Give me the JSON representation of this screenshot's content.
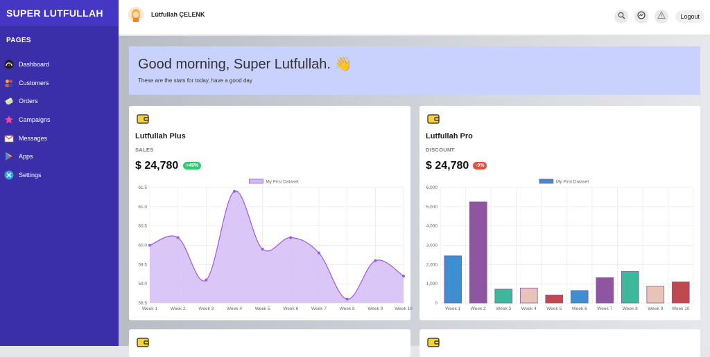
{
  "sidebar": {
    "brand": "SUPER LUTFULLAH",
    "section": "PAGES",
    "items": [
      {
        "label": "Dashboard",
        "icon": "dashboard-icon"
      },
      {
        "label": "Customers",
        "icon": "customers-icon"
      },
      {
        "label": "Orders",
        "icon": "orders-icon"
      },
      {
        "label": "Campaigns",
        "icon": "campaigns-icon"
      },
      {
        "label": "Messages",
        "icon": "messages-icon"
      },
      {
        "label": "Apps",
        "icon": "apps-icon"
      },
      {
        "label": "Settings",
        "icon": "settings-icon"
      }
    ]
  },
  "topbar": {
    "user_name": "Lütfullah ÇELENK",
    "logout_label": "Logout"
  },
  "greeting": {
    "title": "Good morning, Super Lutfullah. 👋",
    "subtitle": "These are the stats for today, have a good day"
  },
  "cards": [
    {
      "title": "Lutfullah Plus",
      "label": "SALES",
      "amount": "$ 24,780",
      "badge": "+49%",
      "trend": "up"
    },
    {
      "title": "Lutfullah Pro",
      "label": "DISCOUNT",
      "amount": "$ 24,780",
      "badge": "-9%",
      "trend": "down"
    }
  ],
  "colors": {
    "sidebar": "#3a2fa8",
    "brand_bar": "#4536c4",
    "greeting_bg": "#c8d2fd",
    "badge_up": "#2ecc71",
    "badge_down": "#e74c3c"
  },
  "chart_data": [
    {
      "type": "line",
      "legend": "My First Dataset",
      "legend_placement": "top-center",
      "x": [
        "Week 1",
        "Week 2",
        "Week 3",
        "Week 4",
        "Week 5",
        "Week 6",
        "Week 7",
        "Week 8",
        "Week 9",
        "Week 10"
      ],
      "values": [
        60.0,
        60.2,
        59.1,
        61.4,
        59.9,
        60.2,
        59.8,
        58.6,
        59.6,
        59.2
      ],
      "ylim": [
        58.5,
        61.5
      ],
      "yticks": [
        "61.5",
        "61.0",
        "60.5",
        "60.0",
        "59.5",
        "59.0",
        "58.5"
      ],
      "fill": true,
      "color": "#9b59e6",
      "grid": true
    },
    {
      "type": "bar",
      "legend": "My First Dataset",
      "legend_placement": "top-center",
      "x": [
        "Week 1",
        "Week 2",
        "Week 3",
        "Week 4",
        "Week 5",
        "Week 6",
        "Week 7",
        "Week 8",
        "Week 9",
        "Week 10"
      ],
      "values": [
        2450,
        5250,
        720,
        780,
        420,
        650,
        1320,
        1640,
        880,
        1100
      ],
      "ylim": [
        0,
        6000
      ],
      "yticks": [
        "6,000",
        "5,000",
        "4,000",
        "3,000",
        "2,000",
        "1,000",
        "0"
      ],
      "bar_colors": [
        "#3d8fd0",
        "#8e55a0",
        "#3cb89a",
        "#e8c4b8",
        "#c0484f",
        "#3d8fd0",
        "#8e55a0",
        "#3cb89a",
        "#e8c4b8",
        "#c0484f"
      ],
      "grid": true
    }
  ]
}
